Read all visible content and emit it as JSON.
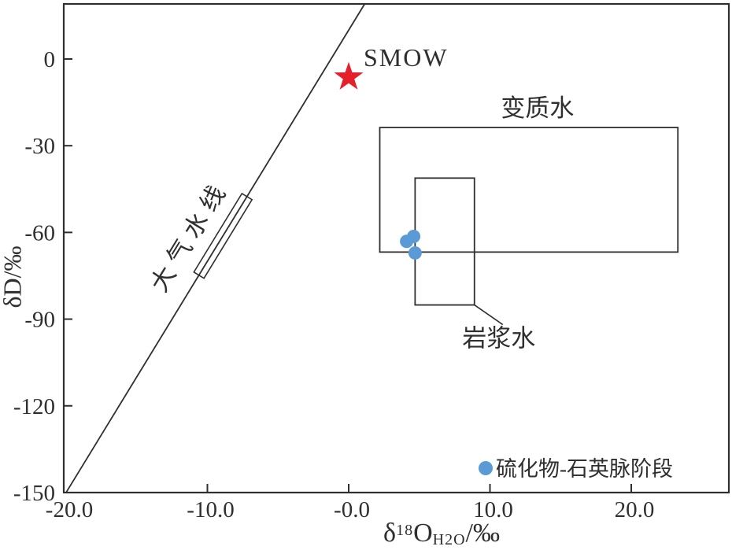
{
  "colors": {
    "ink": "#2f2f2f",
    "point_blue": "#5b9bd5",
    "star_red": "#e5202b",
    "background": "#ffffff"
  },
  "axis": {
    "x": {
      "prefix": "δ",
      "sup": "18",
      "main": "O",
      "sub": "H2O",
      "suffix": "/‰"
    },
    "y": {
      "label": "δD/‰"
    }
  },
  "chart_data": {
    "type": "scatter",
    "title": "",
    "xlabel": "δ18OH2O/‰",
    "ylabel": "δD/‰",
    "xlim": [
      -20.3,
      26.9
    ],
    "ylim": [
      -150,
      19
    ],
    "grid": false,
    "x_ticks": [
      {
        "value": -20,
        "label": "-20.0",
        "tick": false
      },
      {
        "value": -10,
        "label": "-10.0",
        "tick": true
      },
      {
        "value": 0,
        "label": "-0.0",
        "tick": true
      },
      {
        "value": 10,
        "label": "10.0",
        "tick": true
      },
      {
        "value": 20,
        "label": "20.0",
        "tick": true
      }
    ],
    "y_ticks": [
      {
        "value": 0,
        "label": "0",
        "tick": true
      },
      {
        "value": -30,
        "label": "-30",
        "tick": true
      },
      {
        "value": -60,
        "label": "-60",
        "tick": true
      },
      {
        "value": -90,
        "label": "-90",
        "tick": true
      },
      {
        "value": -120,
        "label": "-120",
        "tick": true
      },
      {
        "value": -150,
        "label": "-150",
        "tick": false
      }
    ],
    "meteoric_line": {
      "label": "大气水线",
      "slope": 8,
      "intercept": 10,
      "range_box": {
        "x1": -10.6,
        "x2": -7.2
      }
    },
    "reference_fields": [
      {
        "id": "metamorphic-water",
        "label": "变质水",
        "x": [
          2.2,
          23.3
        ],
        "y": [
          -23.7,
          -66.8
        ],
        "label_side": "above"
      },
      {
        "id": "magmatic-water",
        "label": "岩浆水",
        "x": [
          4.7,
          8.9
        ],
        "y": [
          -41.2,
          -85.1
        ],
        "label_side": "leader-below-right"
      }
    ],
    "smow": {
      "label": "SMOW",
      "x": 0,
      "y": -6.3
    },
    "series": [
      {
        "name": "硫化物-石英脉阶段",
        "color": "#5b9bd5",
        "marker": "circle",
        "points": [
          {
            "x": 4.6,
            "y": -61.4
          },
          {
            "x": 4.1,
            "y": -63.1
          },
          {
            "x": 4.7,
            "y": -67.1
          }
        ]
      }
    ],
    "legend": {
      "position": "bottom-right",
      "entries": [
        {
          "marker": "circle",
          "color": "#5b9bd5",
          "label": "硫化物-石英脉阶段"
        }
      ]
    }
  }
}
